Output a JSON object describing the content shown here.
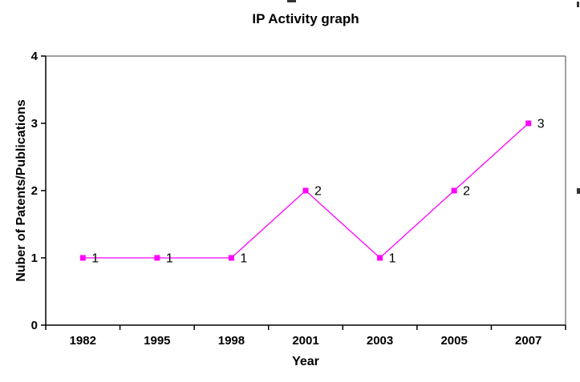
{
  "chart_data": {
    "type": "line",
    "title": "IP Activity graph",
    "categories": [
      "1982",
      "1995",
      "1998",
      "2001",
      "2003",
      "2005",
      "2007"
    ],
    "values": [
      1,
      1,
      1,
      2,
      1,
      2,
      3
    ],
    "data_labels": [
      "1",
      "1",
      "1",
      "2",
      "1",
      "2",
      "3"
    ],
    "xlabel": "Year",
    "ylabel": "Nuber of Patents/Publications",
    "ylim": [
      0,
      4
    ],
    "yticks": [
      0,
      1,
      2,
      3,
      4
    ],
    "series_color": "#FF00FF",
    "marker": "square",
    "grid": false,
    "legend": "none",
    "plot_border_color": "#808080",
    "axis_color": "#000000",
    "background_color": "#FFFFFF"
  }
}
